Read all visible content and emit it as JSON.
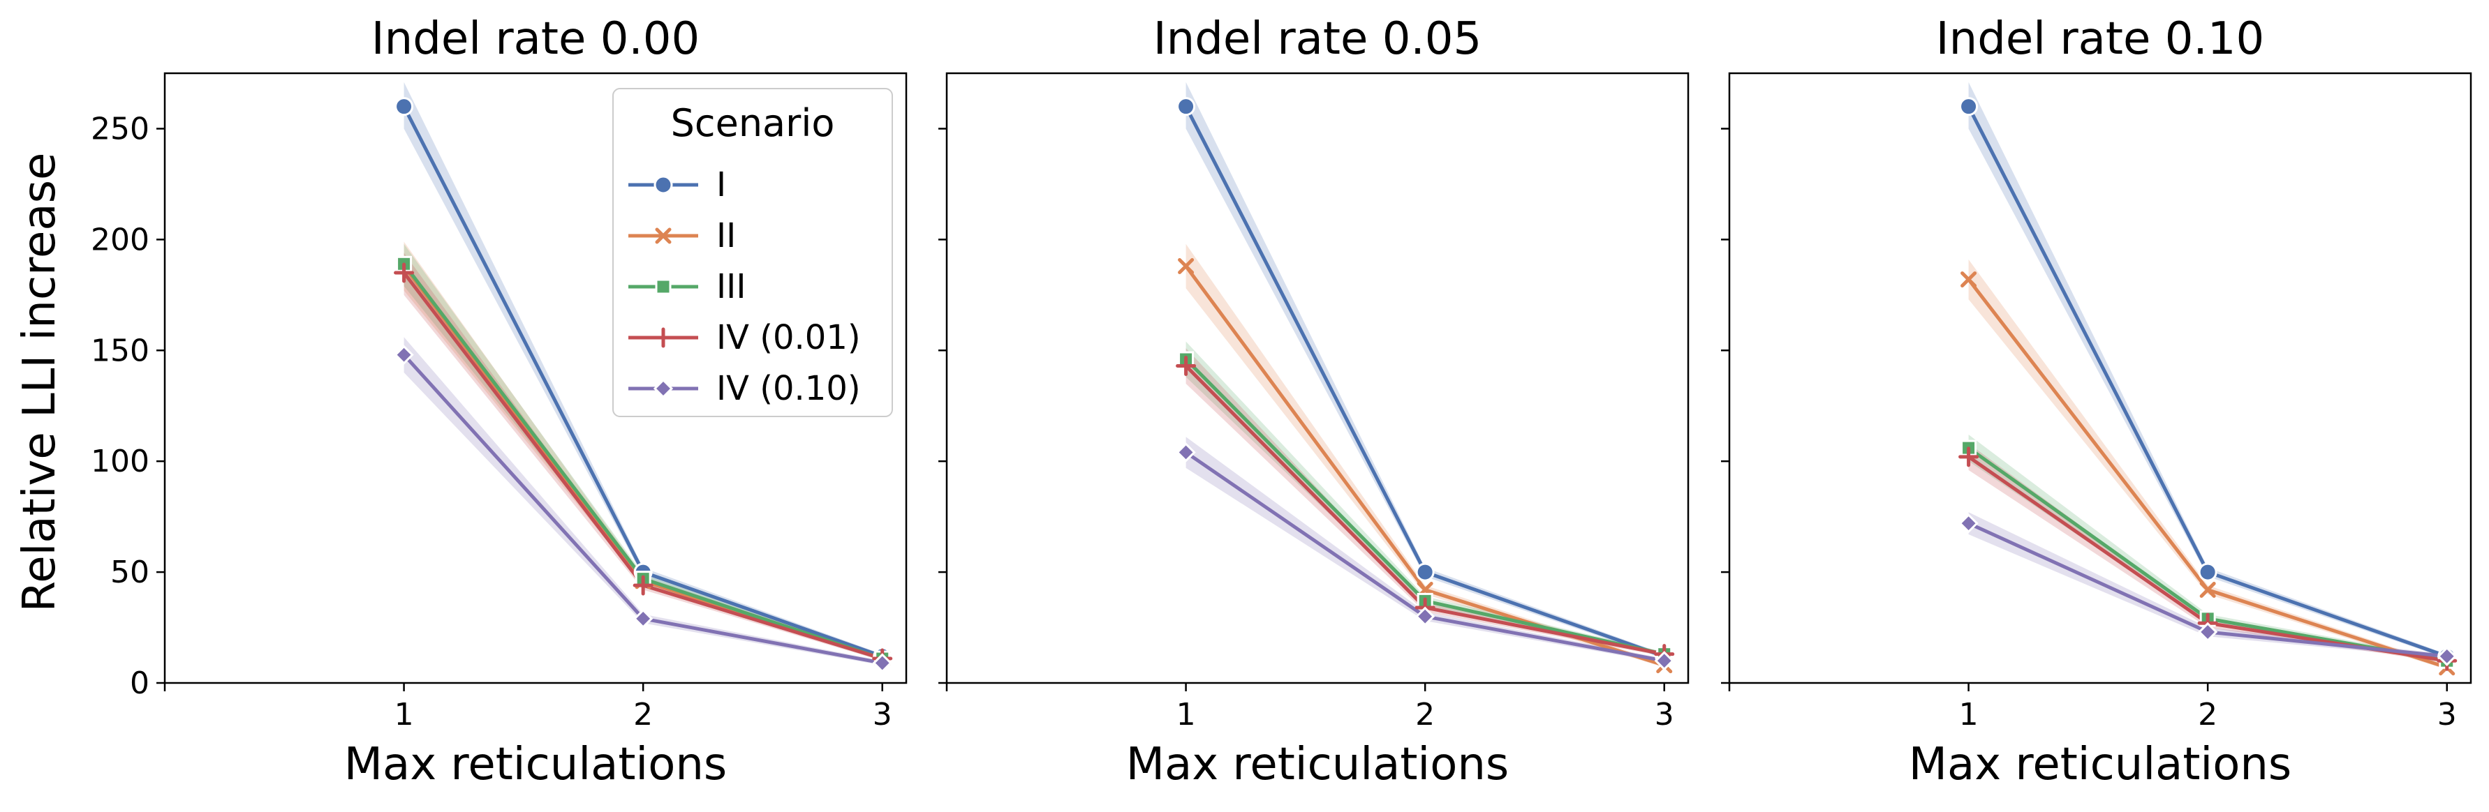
{
  "chart_data": {
    "type": "line",
    "ylabel": "Relative LLI increase",
    "xlabel": "Max reticulations",
    "x": [
      1,
      2,
      3
    ],
    "ylim": [
      0,
      275
    ],
    "yticks": [
      0,
      50,
      100,
      150,
      200,
      250
    ],
    "xlim": [
      0,
      3.1
    ],
    "legend": {
      "title": "Scenario",
      "position": "upper right (first panel)"
    },
    "series_styles": [
      {
        "name": "I",
        "color": "#4C72B0",
        "marker": "circle"
      },
      {
        "name": "II",
        "color": "#DD8452",
        "marker": "x"
      },
      {
        "name": "III",
        "color": "#55A868",
        "marker": "square"
      },
      {
        "name": "IV (0.01)",
        "color": "#C44E52",
        "marker": "plus"
      },
      {
        "name": "IV (0.10)",
        "color": "#8172B3",
        "marker": "diamond"
      }
    ],
    "panels": [
      {
        "title": "Indel rate 0.00",
        "series": [
          {
            "name": "I",
            "values": [
              260,
              50,
              12
            ],
            "lower": [
              250,
              48,
              11
            ],
            "upper": [
              271,
              52,
              13
            ]
          },
          {
            "name": "II",
            "values": [
              188,
              46,
              11
            ],
            "lower": [
              177,
              44,
              10
            ],
            "upper": [
              199,
              48,
              12
            ]
          },
          {
            "name": "III",
            "values": [
              189,
              47,
              11
            ],
            "lower": [
              179,
              45,
              10
            ],
            "upper": [
              198,
              49,
              12
            ]
          },
          {
            "name": "IV (0.01)",
            "values": [
              185,
              44,
              11
            ],
            "lower": [
              175,
              42,
              10
            ],
            "upper": [
              194,
              46,
              12
            ]
          },
          {
            "name": "IV (0.10)",
            "values": [
              148,
              29,
              9
            ],
            "lower": [
              140,
              27,
              8
            ],
            "upper": [
              156,
              31,
              10
            ]
          }
        ]
      },
      {
        "title": "Indel rate 0.05",
        "series": [
          {
            "name": "I",
            "values": [
              260,
              50,
              12
            ],
            "lower": [
              250,
              48,
              11
            ],
            "upper": [
              271,
              52,
              13
            ]
          },
          {
            "name": "II",
            "values": [
              188,
              42,
              8
            ],
            "lower": [
              178,
              40,
              7
            ],
            "upper": [
              198,
              44,
              9
            ]
          },
          {
            "name": "III",
            "values": [
              146,
              37,
              13
            ],
            "lower": [
              138,
              35,
              12
            ],
            "upper": [
              154,
              39,
              14
            ]
          },
          {
            "name": "IV (0.01)",
            "values": [
              143,
              34,
              13
            ],
            "lower": [
              135,
              32,
              12
            ],
            "upper": [
              151,
              36,
              14
            ]
          },
          {
            "name": "IV (0.10)",
            "values": [
              104,
              30,
              10
            ],
            "lower": [
              97,
              28,
              9
            ],
            "upper": [
              111,
              32,
              11
            ]
          }
        ]
      },
      {
        "title": "Indel rate 0.10",
        "series": [
          {
            "name": "I",
            "values": [
              260,
              50,
              12
            ],
            "lower": [
              250,
              48,
              11
            ],
            "upper": [
              271,
              52,
              13
            ]
          },
          {
            "name": "II",
            "values": [
              182,
              42,
              7
            ],
            "lower": [
              173,
              40,
              6
            ],
            "upper": [
              191,
              44,
              8
            ]
          },
          {
            "name": "III",
            "values": [
              106,
              29,
              10
            ],
            "lower": [
              100,
              27,
              9
            ],
            "upper": [
              112,
              31,
              11
            ]
          },
          {
            "name": "IV (0.01)",
            "values": [
              102,
              27,
              10
            ],
            "lower": [
              96,
              25,
              9
            ],
            "upper": [
              108,
              29,
              11
            ]
          },
          {
            "name": "IV (0.10)",
            "values": [
              72,
              23,
              12
            ],
            "lower": [
              67,
              21,
              11
            ],
            "upper": [
              77,
              25,
              13
            ]
          }
        ]
      }
    ]
  }
}
